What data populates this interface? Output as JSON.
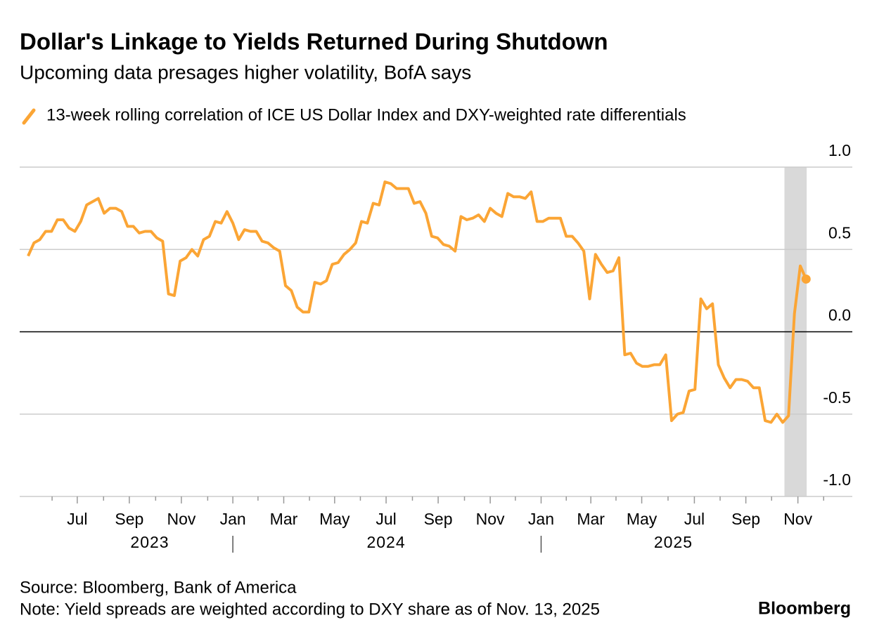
{
  "chart_data": {
    "type": "line",
    "title": "Dollar's Linkage to Yields Returned During Shutdown",
    "subtitle": "Upcoming data presages higher volatility, BofA says",
    "series": [
      {
        "name": "13-week rolling correlation of ICE US Dollar Index and DXY-weighted rate differentials",
        "color": "#fba535",
        "values": [
          0.46,
          0.54,
          0.56,
          0.61,
          0.61,
          0.68,
          0.68,
          0.63,
          0.61,
          0.67,
          0.77,
          0.79,
          0.81,
          0.72,
          0.75,
          0.75,
          0.73,
          0.64,
          0.64,
          0.6,
          0.61,
          0.61,
          0.57,
          0.55,
          0.23,
          0.22,
          0.43,
          0.45,
          0.5,
          0.46,
          0.56,
          0.58,
          0.67,
          0.66,
          0.73,
          0.66,
          0.56,
          0.62,
          0.61,
          0.61,
          0.55,
          0.54,
          0.51,
          0.49,
          0.28,
          0.25,
          0.15,
          0.12,
          0.12,
          0.3,
          0.29,
          0.31,
          0.41,
          0.42,
          0.47,
          0.5,
          0.54,
          0.67,
          0.66,
          0.78,
          0.77,
          0.91,
          0.9,
          0.87,
          0.87,
          0.87,
          0.78,
          0.79,
          0.72,
          0.58,
          0.57,
          0.53,
          0.52,
          0.49,
          0.7,
          0.68,
          0.69,
          0.71,
          0.67,
          0.75,
          0.72,
          0.7,
          0.84,
          0.82,
          0.82,
          0.81,
          0.85,
          0.67,
          0.67,
          0.69,
          0.69,
          0.69,
          0.58,
          0.58,
          0.54,
          0.49,
          0.2,
          0.47,
          0.41,
          0.36,
          0.37,
          0.45,
          -0.14,
          -0.13,
          -0.19,
          -0.21,
          -0.21,
          -0.2,
          -0.2,
          -0.14,
          -0.54,
          -0.5,
          -0.49,
          -0.36,
          -0.35,
          0.2,
          0.14,
          0.17,
          -0.2,
          -0.28,
          -0.34,
          -0.29,
          -0.29,
          -0.3,
          -0.34,
          -0.34,
          -0.54,
          -0.55,
          -0.5,
          -0.55,
          -0.51,
          0.11,
          0.4,
          0.32
        ]
      }
    ],
    "xlim": [
      -1.44,
      140.9
    ],
    "xticks": [
      {
        "value": 8.4,
        "label": "Jul"
      },
      {
        "value": 17.3,
        "label": "Sep"
      },
      {
        "value": 26.2,
        "label": "Nov"
      },
      {
        "value": 35.0,
        "label": "Jan"
      },
      {
        "value": 43.7,
        "label": "Mar"
      },
      {
        "value": 52.4,
        "label": "May"
      },
      {
        "value": 61.2,
        "label": "Jul"
      },
      {
        "value": 70.1,
        "label": "Sep"
      },
      {
        "value": 79.0,
        "label": "Nov"
      },
      {
        "value": 87.7,
        "label": "Jan"
      },
      {
        "value": 96.2,
        "label": "Mar"
      },
      {
        "value": 104.9,
        "label": "May"
      },
      {
        "value": 113.9,
        "label": "Jul"
      },
      {
        "value": 122.7,
        "label": "Sep"
      },
      {
        "value": 131.6,
        "label": "Nov"
      }
    ],
    "minor_xticks": [
      4.1,
      12.9,
      21.8,
      30.7,
      39.3,
      48.1,
      56.8,
      65.7,
      74.6,
      83.3,
      92.0,
      100.5,
      109.4,
      118.3,
      127.1,
      136.0
    ],
    "years": [
      {
        "value": 20.8,
        "label": "2023"
      },
      {
        "value": 61.2,
        "label": "2024"
      },
      {
        "value": 110.3,
        "label": "2025"
      }
    ],
    "year_breaks": [
      35.0,
      87.7
    ],
    "shaded": [
      129.3,
      133.1
    ],
    "ylim": [
      -1,
      1
    ],
    "yticks": [
      {
        "value": 1,
        "label": "1.0"
      },
      0.5,
      {
        "value": 0,
        "label": "0.0"
      },
      -0.5,
      {
        "value": -1,
        "label": "-1.0"
      }
    ],
    "grid": true,
    "source": "Source: Bloomberg, Bank of America",
    "note": "Note: Yield spreads are weighted according to DXY share as of Nov. 13, 2025",
    "brand": "Bloomberg"
  }
}
